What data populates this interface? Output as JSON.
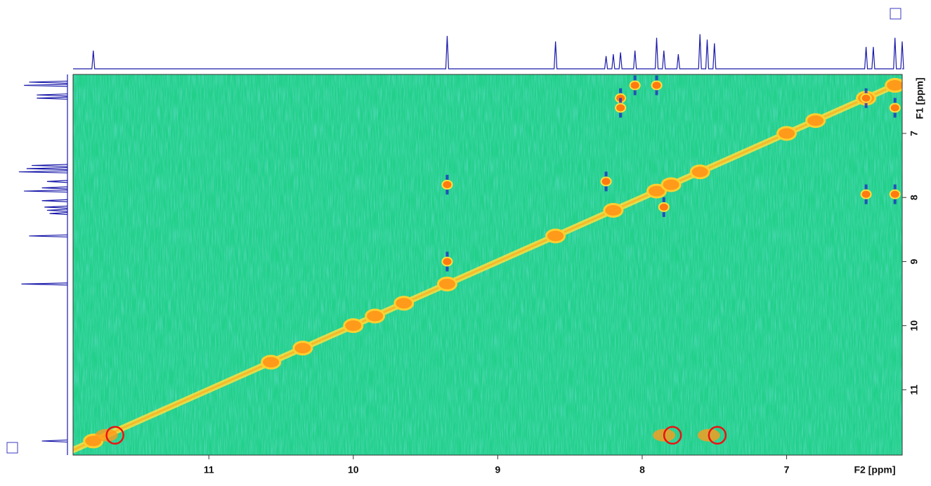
{
  "chart_data": {
    "type": "nmr2d",
    "xlabel": "F2 [ppm]",
    "ylabel": "F1 [ppm]",
    "xlim": [
      11.94,
      6.2
    ],
    "ylim": [
      12.02,
      6.08
    ],
    "xticks": [
      11,
      10,
      9,
      8,
      7
    ],
    "yticks": [
      7,
      8,
      9,
      10,
      11
    ],
    "projection": {
      "x": [
        11.8,
        9.35,
        8.6,
        8.25,
        8.2,
        8.15,
        8.05,
        7.9,
        7.85,
        7.75,
        7.6,
        7.55,
        7.5,
        6.45,
        6.4,
        6.25,
        6.2
      ],
      "values": [
        0.5,
        0.9,
        0.75,
        0.35,
        0.4,
        0.45,
        0.5,
        0.85,
        0.5,
        0.4,
        0.95,
        0.8,
        0.7,
        0.6,
        0.6,
        0.85,
        0.75
      ]
    },
    "diagonal_peaks": [
      11.8,
      10.57,
      10.35,
      10.0,
      9.85,
      9.65,
      9.35,
      8.6,
      8.2,
      7.9,
      7.8,
      7.6,
      7.0,
      6.8,
      6.45,
      6.25
    ],
    "cross_peaks": {
      "x": [
        8.15,
        8.05,
        7.9,
        8.15,
        6.45,
        6.25,
        8.25,
        7.85,
        6.45,
        6.25,
        9.35,
        9.35
      ],
      "y": [
        6.45,
        6.25,
        6.25,
        6.6,
        7.95,
        7.95,
        7.75,
        8.15,
        6.45,
        6.6,
        7.8,
        9.0
      ]
    },
    "highlights": {
      "x": [
        11.65,
        7.79,
        7.48
      ],
      "y": [
        11.71,
        11.71,
        11.71
      ]
    },
    "color": "#1a1aaa"
  }
}
